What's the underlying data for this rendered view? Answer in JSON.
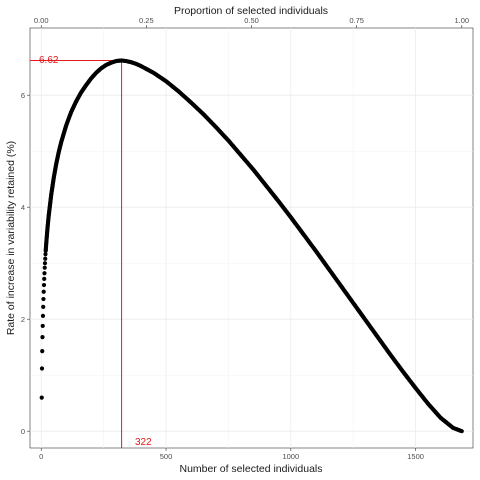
{
  "chart_data": {
    "type": "scatter",
    "xlabel": "Number of selected individuals",
    "ylabel": "Rate of increase in variability retained (%)",
    "x2label": "Proportion of selected individuals",
    "xlim": [
      -45,
      1730
    ],
    "ylim": [
      -0.3,
      7.2
    ],
    "x_ticks": [
      0,
      500,
      1000,
      1500
    ],
    "x_tick_labels": [
      "0",
      "500",
      "1000",
      "1500"
    ],
    "y_ticks": [
      0,
      2,
      4,
      6
    ],
    "y_tick_labels": [
      "0",
      "2",
      "4",
      "6"
    ],
    "x2_ticks": [
      0.0,
      0.25,
      0.5,
      0.75,
      1.0
    ],
    "x2_tick_labels": [
      "0.00",
      "0.25",
      "0.50",
      "0.75",
      "1.00"
    ],
    "total_individuals": 1685,
    "grid": true,
    "series": [
      {
        "points": [
          [
            2,
            0.6
          ],
          [
            3,
            1.12
          ],
          [
            4,
            1.43
          ],
          [
            5,
            1.68
          ],
          [
            6,
            1.88
          ],
          [
            7,
            2.06
          ],
          [
            8,
            2.22
          ],
          [
            9,
            2.36
          ],
          [
            10,
            2.49
          ],
          [
            11,
            2.61
          ],
          [
            12,
            2.72
          ],
          [
            13,
            2.82
          ],
          [
            14,
            2.92
          ],
          [
            15,
            3.0
          ],
          [
            16,
            3.08
          ],
          [
            17,
            3.16
          ],
          [
            18,
            3.22
          ],
          [
            20,
            3.35
          ],
          [
            25,
            3.62
          ],
          [
            30,
            3.85
          ],
          [
            40,
            4.22
          ],
          [
            50,
            4.52
          ],
          [
            60,
            4.77
          ],
          [
            70,
            4.98
          ],
          [
            80,
            5.16
          ],
          [
            100,
            5.46
          ],
          [
            120,
            5.7
          ],
          [
            140,
            5.89
          ],
          [
            160,
            6.05
          ],
          [
            180,
            6.18
          ],
          [
            200,
            6.3
          ],
          [
            220,
            6.4
          ],
          [
            240,
            6.48
          ],
          [
            260,
            6.54
          ],
          [
            280,
            6.58
          ],
          [
            300,
            6.61
          ],
          [
            322,
            6.62
          ],
          [
            340,
            6.61
          ],
          [
            360,
            6.59
          ],
          [
            380,
            6.56
          ],
          [
            400,
            6.52
          ],
          [
            450,
            6.4
          ],
          [
            500,
            6.25
          ],
          [
            550,
            6.07
          ],
          [
            600,
            5.87
          ],
          [
            650,
            5.66
          ],
          [
            700,
            5.43
          ],
          [
            750,
            5.19
          ],
          [
            800,
            4.93
          ],
          [
            850,
            4.67
          ],
          [
            900,
            4.39
          ],
          [
            950,
            4.11
          ],
          [
            1000,
            3.82
          ],
          [
            1050,
            3.52
          ],
          [
            1100,
            3.22
          ],
          [
            1150,
            2.91
          ],
          [
            1200,
            2.6
          ],
          [
            1250,
            2.29
          ],
          [
            1300,
            1.98
          ],
          [
            1350,
            1.67
          ],
          [
            1400,
            1.36
          ],
          [
            1450,
            1.06
          ],
          [
            1500,
            0.77
          ],
          [
            1550,
            0.49
          ],
          [
            1600,
            0.24
          ],
          [
            1650,
            0.06
          ],
          [
            1685,
            0.0
          ]
        ],
        "color": "#000000"
      }
    ],
    "annotations": {
      "max_y_label": "6.62",
      "max_x_label": "322",
      "max_x": 322,
      "max_y": 6.62,
      "color": "#e41a1c"
    }
  }
}
